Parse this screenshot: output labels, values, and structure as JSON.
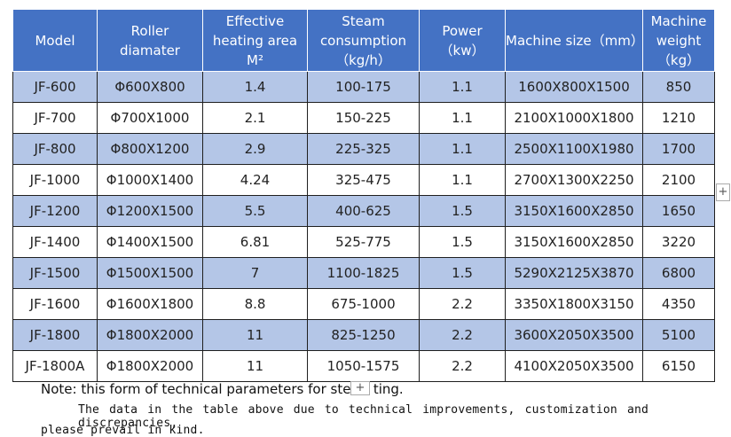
{
  "table": {
    "header": [
      [
        "Model"
      ],
      [
        "Roller",
        "diamater"
      ],
      [
        "Effective",
        "heating area",
        "M²"
      ],
      [
        "Steam",
        "consumption",
        "（kg/h）"
      ],
      [
        "Power",
        "（kw）"
      ],
      [
        "Machine size（mm）"
      ],
      [
        "Machine",
        "weight",
        "（kg）"
      ]
    ],
    "rows": [
      [
        "JF-600",
        "Φ600X800",
        "1.4",
        "100-175",
        "1.1",
        "1600X800X1500",
        "850"
      ],
      [
        "JF-700",
        "Φ700X1000",
        "2.1",
        "150-225",
        "1.1",
        "2100X1000X1800",
        "1210"
      ],
      [
        "JF-800",
        "Φ800X1200",
        "2.9",
        "225-325",
        "1.1",
        "2500X1100X1980",
        "1700"
      ],
      [
        "JF-1000",
        "Φ1000X1400",
        "4.24",
        "325-475",
        "1.1",
        "2700X1300X2250",
        "2100"
      ],
      [
        "JF-1200",
        "Φ1200X1500",
        "5.5",
        "400-625",
        "1.5",
        "3150X1600X2850",
        "1650"
      ],
      [
        "JF-1400",
        "Φ1400X1500",
        "6.81",
        "525-775",
        "1.5",
        "3150X1600X2850",
        "3220"
      ],
      [
        "JF-1500",
        "Φ1500X1500",
        "7",
        "1100-1825",
        "1.5",
        "5290X2125X3870",
        "6800"
      ],
      [
        "JF-1600",
        "Φ1600X1800",
        "8.8",
        "675-1000",
        "2.2",
        "3350X1800X3150",
        "4350"
      ],
      [
        "JF-1800",
        "Φ1800X2000",
        "11",
        "825-1250",
        "2.2",
        "3600X2050X3500",
        "5100"
      ],
      [
        "JF-1800A",
        "Φ1800X2000",
        "11",
        "1050-1575",
        "2.2",
        "4100X2050X3500",
        "6150"
      ]
    ]
  },
  "note": {
    "parts": [
      "Note: this form of technical parameters for stear",
      "ting."
    ],
    "lines": [
      "The data in the table above due to technical improvements, customization and discrepancies,",
      "please prevail in kind."
    ]
  }
}
